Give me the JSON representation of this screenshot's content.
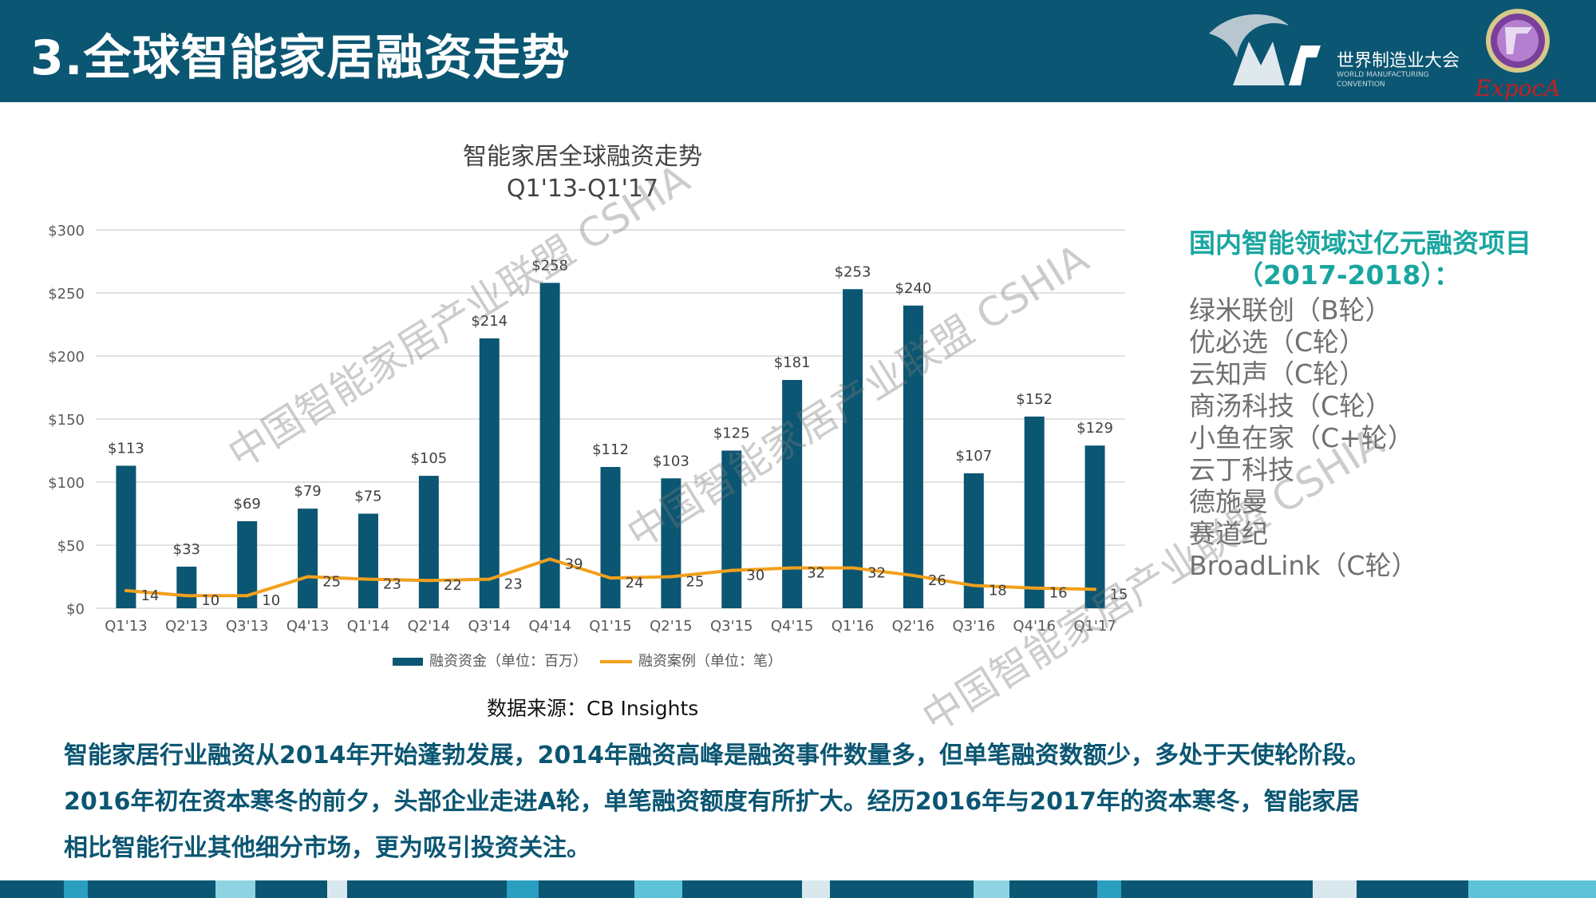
{
  "header": {
    "title": "3.全球智能家居融资走势",
    "logo_wmc_cn": "世界制造业大会",
    "logo_wmc_en": "WORLD MANUFACTURING CONVENTION",
    "logo_expo_text": "ExpocA"
  },
  "chart_data": {
    "type": "bar",
    "title": "智能家居全球融资走势",
    "subtitle": "Q1'13-Q1'17",
    "categories": [
      "Q1'13",
      "Q2'13",
      "Q3'13",
      "Q4'13",
      "Q1'14",
      "Q2'14",
      "Q3'14",
      "Q4'14",
      "Q1'15",
      "Q2'15",
      "Q3'15",
      "Q4'15",
      "Q1'16",
      "Q2'16",
      "Q3'16",
      "Q4'16",
      "Q1'17"
    ],
    "series": [
      {
        "name": "融资资金（单位：百万）",
        "type": "bar",
        "color": "#0b5672",
        "values": [
          113,
          33,
          69,
          79,
          75,
          105,
          214,
          258,
          112,
          103,
          125,
          181,
          253,
          240,
          107,
          152,
          129
        ],
        "labels": [
          "$113",
          "$33",
          "$69",
          "$79",
          "$75",
          "$105",
          "$214",
          "$258",
          "$112",
          "$103",
          "$125",
          "$181",
          "$253",
          "$240",
          "$107",
          "$152",
          "$129"
        ]
      },
      {
        "name": "融资案例（单位：笔）",
        "type": "line",
        "color": "#f2a01c",
        "values": [
          14,
          10,
          10,
          25,
          23,
          22,
          23,
          39,
          24,
          25,
          30,
          32,
          32,
          26,
          18,
          16,
          15
        ]
      }
    ],
    "y_ticks": [
      "$0",
      "$50",
      "$100",
      "$150",
      "$200",
      "$250",
      "$300"
    ],
    "ylim": [
      0,
      300
    ],
    "grid": true,
    "legend_position": "bottom"
  },
  "side_panel": {
    "heading_line1": "国内智能领域过亿元融资项目",
    "heading_line2": "（2017-2018）：",
    "items": [
      "绿米联创（B轮）",
      "优必选（C轮）",
      "云知声（C轮）",
      "商汤科技（C轮）",
      "小鱼在家（C+轮）",
      "云丁科技",
      "德施曼",
      "赛道纪",
      "BroadLink（C轮）"
    ]
  },
  "source": "数据来源：CB Insights",
  "summary": {
    "line1": "智能家居行业融资从2014年开始蓬勃发展，2014年融资高峰是融资事件数量多，但单笔融资数额少，多处于天使轮阶段。",
    "line2": "2016年初在资本寒冬的前夕，头部企业走进A轮，单笔融资额度有所扩大。经历2016年与2017年的资本寒冬，智能家居",
    "line3": "相比智能行业其他细分市场，更为吸引投资关注。"
  },
  "watermark": "中国智能家居产业联盟 CSHIA",
  "colors": {
    "header_bg": "#0b5672",
    "accent_teal": "#1aa6a0",
    "bar": "#0b5672",
    "line": "#f2a01c",
    "footer": [
      "#0b5672",
      "#2a9fc0",
      "#0b5672",
      "#8fd3e3",
      "#0b5672",
      "#d9e8ee",
      "#0b5672",
      "#2a9fc0",
      "#0b5672",
      "#5ec3d8",
      "#0b5672",
      "#d9e8ee",
      "#0b5672",
      "#8fd3e3",
      "#0b5672",
      "#2a9fc0",
      "#0b5672",
      "#d9e8ee",
      "#0b5672",
      "#5ec3d8"
    ]
  }
}
